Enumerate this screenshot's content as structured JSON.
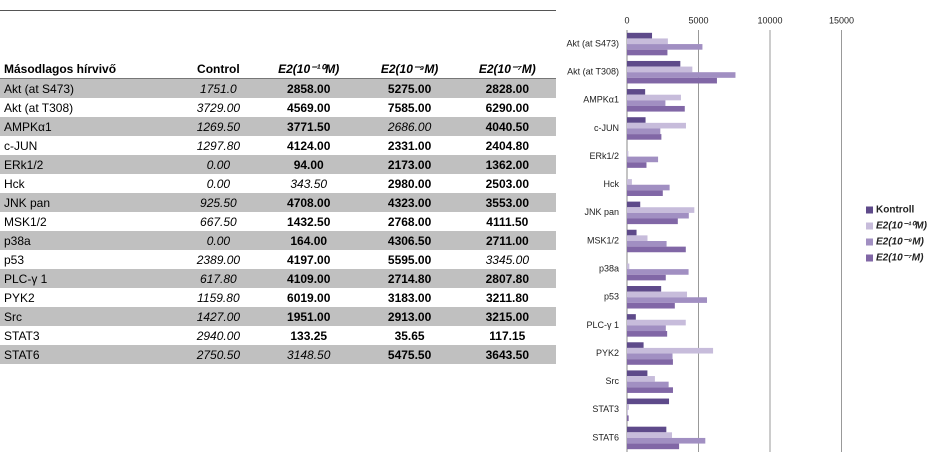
{
  "table": {
    "header": [
      "Másodlagos hírvivő",
      "Control",
      "E2(10⁻¹⁰M)",
      "E2(10⁻⁹M)",
      "E2(10⁻⁷M)"
    ],
    "rows": [
      [
        "Akt (at S473)",
        "1751.0",
        "2858.00",
        "5275.00",
        "2828.00"
      ],
      [
        "Akt (at T308)",
        "3729.00",
        "4569.00",
        "7585.00",
        "6290.00"
      ],
      [
        "AMPKα1",
        "1269.50",
        "3771.50",
        "2686.00",
        "4040.50"
      ],
      [
        "c-JUN",
        "1297.80",
        "4124.00",
        "2331.00",
        "2404.80"
      ],
      [
        "ERk1/2",
        "0.00",
        "94.00",
        "2173.00",
        "1362.00"
      ],
      [
        "Hck",
        "0.00",
        "343.50",
        "2980.00",
        "2503.00"
      ],
      [
        "JNK pan",
        "925.50",
        "4708.00",
        "4323.00",
        "3553.00"
      ],
      [
        "MSK1/2",
        "667.50",
        "1432.50",
        "2768.00",
        "4111.50"
      ],
      [
        "p38a",
        "0.00",
        "164.00",
        "4306.50",
        "2711.00"
      ],
      [
        "p53",
        "2389.00",
        "4197.00",
        "5595.00",
        "3345.00"
      ],
      [
        "PLC-γ 1",
        "617.80",
        "4109.00",
        "2714.80",
        "2807.80"
      ],
      [
        "PYK2",
        "1159.80",
        "6019.00",
        "3183.00",
        "3211.80"
      ],
      [
        "Src",
        "1427.00",
        "1951.00",
        "2913.00",
        "3215.00"
      ],
      [
        "STAT3",
        "2940.00",
        "133.25",
        "35.65",
        "117.15"
      ],
      [
        "STAT6",
        "2750.50",
        "3148.50",
        "5475.50",
        "3643.50"
      ]
    ]
  },
  "chart_data": {
    "type": "bar",
    "orientation": "horizontal",
    "categories": [
      "Akt (at S473)",
      "Akt (at T308)",
      "AMPKα1",
      "c-JUN",
      "ERk1/2",
      "Hck",
      "JNK pan",
      "MSK1/2",
      "p38a",
      "p53",
      "PLC-γ 1",
      "PYK2",
      "Src",
      "STAT3",
      "STAT6"
    ],
    "series": [
      {
        "name": "Kontroll",
        "color": "#5e4a8a",
        "values": [
          1751,
          3729,
          1269.5,
          1297.8,
          0,
          0,
          925.5,
          667.5,
          0,
          2389,
          617.8,
          1159.8,
          1427,
          2940,
          2750.5
        ]
      },
      {
        "name": "E2(10⁻¹⁰M)",
        "color": "#c7bcdb",
        "values": [
          2858,
          4569,
          3771.5,
          4124,
          94,
          343.5,
          4708,
          1432.5,
          164,
          4197,
          4109,
          6019,
          1951,
          133.25,
          3148.5
        ]
      },
      {
        "name": "E2(10⁻⁹M)",
        "color": "#a18fc2",
        "values": [
          5275,
          7585,
          2686,
          2331,
          2173,
          2980,
          4323,
          2768,
          4306.5,
          5595,
          2714.8,
          3183,
          2913,
          35.65,
          5475.5
        ]
      },
      {
        "name": "E2(10⁻⁷M)",
        "color": "#8167a6",
        "values": [
          2828,
          6290,
          4040.5,
          2404.8,
          1362,
          2503,
          3553,
          4111.5,
          2711,
          3345,
          2807.8,
          3211.8,
          3215,
          117.15,
          3643.5
        ]
      }
    ],
    "xlim": [
      0,
      20000
    ],
    "xticks": [
      0,
      5000,
      10000,
      15000
    ],
    "grid": true,
    "legend": "right"
  }
}
